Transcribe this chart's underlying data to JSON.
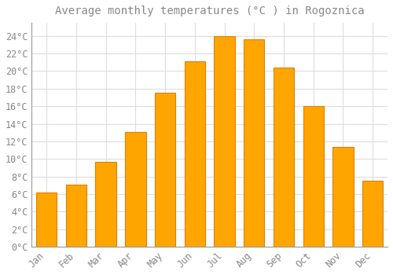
{
  "title": "Average monthly temperatures (°C ) in Rogoznica",
  "months": [
    "Jan",
    "Feb",
    "Mar",
    "Apr",
    "May",
    "Jun",
    "Jul",
    "Aug",
    "Sep",
    "Oct",
    "Nov",
    "Dec"
  ],
  "temperatures": [
    6.2,
    7.1,
    9.7,
    13.1,
    17.5,
    21.1,
    24.0,
    23.6,
    20.4,
    16.0,
    11.4,
    7.5
  ],
  "bar_color_main": "#FFA500",
  "bar_color_edge": "#E08000",
  "background_color": "#FFFFFF",
  "grid_color": "#DDDDDD",
  "text_color": "#888888",
  "ylim": [
    0,
    25.5
  ],
  "yticks": [
    0,
    2,
    4,
    6,
    8,
    10,
    12,
    14,
    16,
    18,
    20,
    22,
    24
  ],
  "title_fontsize": 10,
  "tick_fontsize": 8.5
}
